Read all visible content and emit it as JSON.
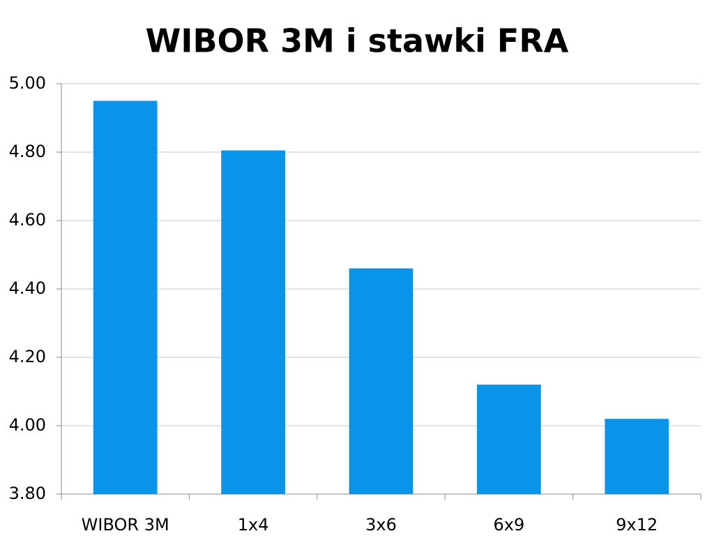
{
  "chart_data": {
    "type": "bar",
    "title": "WIBOR 3M i stawki FRA",
    "categories": [
      "WIBOR 3M",
      "1x4",
      "3x6",
      "6x9",
      "9x12"
    ],
    "values": [
      4.95,
      4.805,
      4.46,
      4.12,
      4.02
    ],
    "color": "#0894e8",
    "ylim": [
      3.8,
      5.0
    ],
    "yticks": [
      {
        "value": 3.8,
        "label": "3.80"
      },
      {
        "value": 4.0,
        "label": "4.00"
      },
      {
        "value": 4.2,
        "label": "4.20"
      },
      {
        "value": 4.4,
        "label": "4.40"
      },
      {
        "value": 4.6,
        "label": "4.60"
      },
      {
        "value": 4.8,
        "label": "4.80"
      },
      {
        "value": 5.0,
        "label": "5.00"
      }
    ],
    "grid": true
  }
}
